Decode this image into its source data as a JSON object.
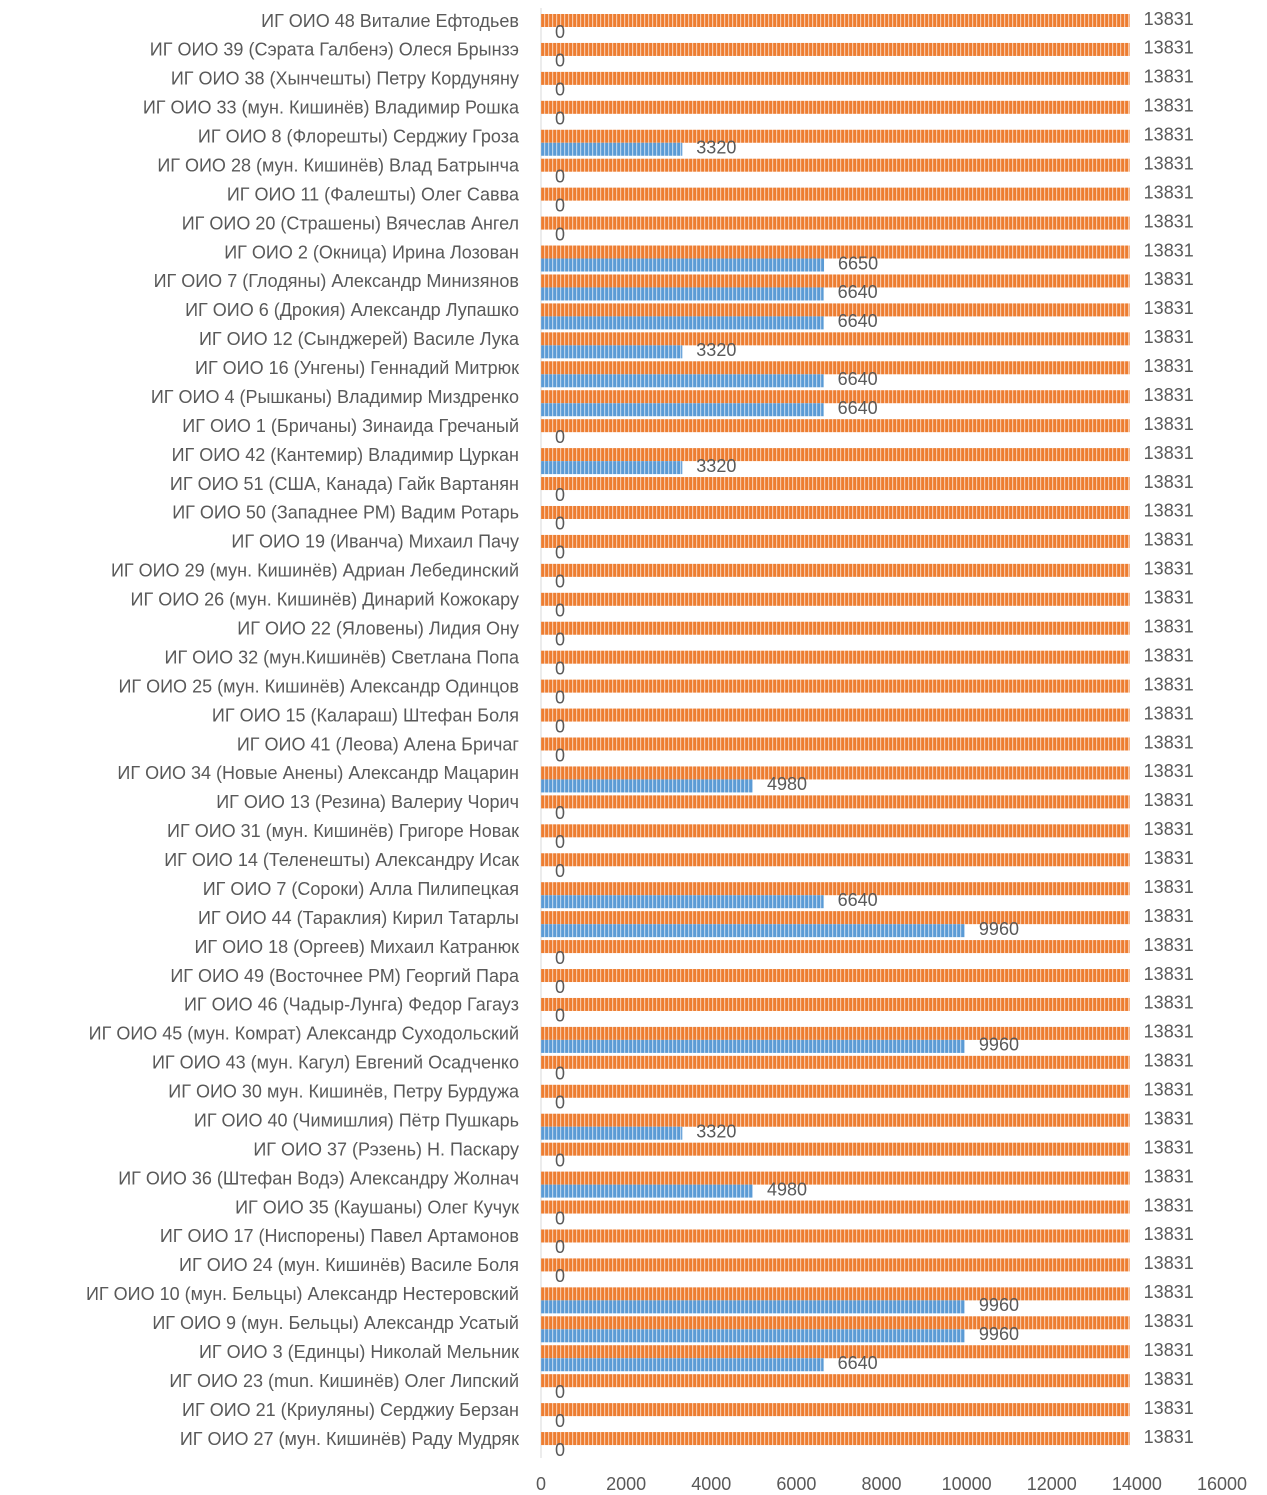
{
  "chart_data": {
    "type": "bar",
    "orientation": "horizontal",
    "categories": [
      "ИГ ОИО 48 Виталие Ефтодьев",
      "ИГ ОИО 39 (Сэрата Галбенэ) Олеся Брынзэ",
      "ИГ ОИО 38 (Хынчешты) Петру Кордуняну",
      "ИГ ОИО 33 (мун. Кишинёв) Владимир Рошка",
      "ИГ ОИО 8 (Флорешты) Серджиу Гроза",
      "ИГ ОИО 28  (мун. Кишинёв) Влад Батрынча",
      "ИГ ОИО 11 (Фалешты) Олег Савва",
      "ИГ ОИО 20 (Страшены) Вячеслав Ангел",
      "ИГ ОИО 2 (Окница) Ирина Лозован",
      "ИГ ОИО 7 (Глодяны) Александр Минизянов",
      "ИГ ОИО 6 (Дрокия) Александр Лупашко",
      "ИГ ОИО 12 (Сынджерей) Василе Лука",
      "ИГ ОИО 16 (Унгены) Геннадий Митрюк",
      "ИГ ОИО 4 (Рышканы) Владимир Миздренко",
      "ИГ ОИО 1 (Бричаны) Зинаида Гречаный",
      "ИГ ОИО 42 (Кантемир) Владимир Цуркан",
      "ИГ ОИО 51 (США, Канада) Гайк Вартанян",
      "ИГ ОИО 50 (Западнее РМ) Вадим Ротарь",
      "ИГ ОИО 19 (Иванча) Михаил Пачу",
      "ИГ ОИО 29 (мун. Кишинёв) Адриан Лебединский",
      "ИГ ОИО 26 (мун. Кишинёв) Динарий Кожокару",
      "ИГ ОИО 22 (Яловены) Лидия Ону",
      "ИГ ОИО 32 (мун.Кишинёв) Светлана Попа",
      "ИГ ОИО 25 (мун. Кишинёв) Александр Одинцов",
      "ИГ ОИО 15 (Калараш) Штефан Боля",
      "ИГ ОИО 41 (Леова) Алена Бричаг",
      "ИГ ОИО 34 (Новые Анены) Александр Мацарин",
      "ИГ ОИО 13 (Резина) Валериу Чорич",
      "ИГ ОИО 31 (мун. Кишинёв) Григоре Новак",
      "ИГ ОИО 14 (Теленешты) Александру Исак",
      "ИГ ОИО 7 (Сороки) Алла Пилипецкая",
      "ИГ ОИО 44 (Тараклия) Кирил Татарлы",
      "ИГ ОИО 18 (Оргеев) Михаил Катранюк",
      "ИГ ОИО 49 (Восточнее РМ) Георгий Пара",
      "ИГ ОИО 46 (Чадыр-Лунга) Федор Гагауз",
      "ИГ ОИО 45 (мун. Комрат) Александр Суходольский",
      "ИГ ОИО 43 (мун. Кагул) Евгений Осадченко",
      "ИГ ОИО 30 мун. Кишинёв, Петру Бурдужа",
      "ИГ ОИО 40 (Чимишлия) Пётр Пушкарь",
      "ИГ ОИО 37 (Рэзень) Н. Паскару",
      "ИГ ОИО 36 (Штефан Водэ) Александру Жолнач",
      "ИГ ОИО 35 (Каушаны) Олег Кучук",
      "ИГ ОИО 17 (Ниспорены) Павел Артамонов",
      "ИГ ОИО 24 (мун. Кишинёв) Василе Боля",
      "ИГ ОИО 10 (мун. Бельцы) Александр Нестеровский",
      "ИГ ОИО 9 (мун. Бельцы) Александр Усатый",
      "ИГ ОИО 3 (Единцы) Николай Мельник",
      "ИГ ОИО 23 (mun. Кишинёв) Олег Липский",
      "ИГ ОИО 21 (Криуляны) Серджиу Берзан",
      "ИГ ОИО 27 (мун. Кишинёв) Раду Мудряк"
    ],
    "series": [
      {
        "color": "#ed7d31",
        "values": [
          13831,
          13831,
          13831,
          13831,
          13831,
          13831,
          13831,
          13831,
          13831,
          13831,
          13831,
          13831,
          13831,
          13831,
          13831,
          13831,
          13831,
          13831,
          13831,
          13831,
          13831,
          13831,
          13831,
          13831,
          13831,
          13831,
          13831,
          13831,
          13831,
          13831,
          13831,
          13831,
          13831,
          13831,
          13831,
          13831,
          13831,
          13831,
          13831,
          13831,
          13831,
          13831,
          13831,
          13831,
          13831,
          13831,
          13831,
          13831,
          13831,
          13831
        ]
      },
      {
        "color": "#5b9bd5",
        "values": [
          0,
          0,
          0,
          0,
          3320,
          0,
          0,
          0,
          6650,
          6640,
          6640,
          3320,
          6640,
          6640,
          0,
          3320,
          0,
          0,
          0,
          0,
          0,
          0,
          0,
          0,
          0,
          0,
          4980,
          0,
          0,
          0,
          6640,
          9960,
          0,
          0,
          0,
          9960,
          0,
          0,
          3320,
          0,
          4980,
          0,
          0,
          0,
          9960,
          9960,
          6640,
          0,
          0,
          0
        ]
      }
    ],
    "xlim": [
      0,
      16000
    ],
    "xticks": [
      0,
      2000,
      4000,
      6000,
      8000,
      10000,
      12000,
      14000,
      16000
    ]
  }
}
